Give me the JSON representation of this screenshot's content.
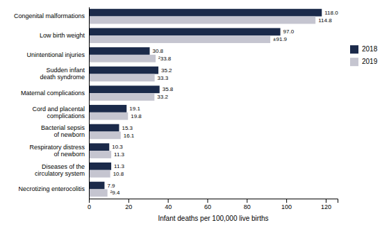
{
  "chart_data": {
    "type": "bar",
    "orientation": "horizontal",
    "categories": [
      "Necrotizing enterocolitis",
      "Diseases of the\ncirculatory system",
      "Respiratory distress\nof newborn",
      "Bacterial sepsis\nof newborn",
      "Cord and placental\ncomplications",
      "Maternal complications",
      "Sudden infant\ndeath syndrome",
      "Unintentional injuries",
      "Low birth weight",
      "Congenital malformations"
    ],
    "series": [
      {
        "name": "2018",
        "color": "#1b2a4a",
        "values": [
          7.9,
          11.3,
          10.3,
          15.3,
          19.1,
          35.8,
          35.2,
          30.8,
          97.0,
          118.0
        ],
        "value_labels": [
          "7.9",
          "11.3",
          "10.3",
          "15.3",
          "19.1",
          "35.8",
          "35.2",
          "30.8",
          "97.0",
          "118.0"
        ]
      },
      {
        "name": "2019",
        "color": "#c5c5d0",
        "values": [
          9.4,
          10.8,
          11.3,
          16.1,
          19.8,
          33.2,
          33.3,
          33.8,
          91.9,
          114.8
        ],
        "value_labels": [
          "²9.4",
          "10.8",
          "11.3",
          "16.1",
          "19.8",
          "33.2",
          "33.3",
          "²33.8",
          "±91.9",
          "114.8"
        ]
      }
    ],
    "xlabel": "Infant deaths per 100,000 live births",
    "xlim": [
      0,
      126
    ],
    "xticks": [
      0,
      20,
      40,
      60,
      80,
      100,
      120
    ],
    "data_labels": true,
    "legend": "right",
    "grid": false
  }
}
